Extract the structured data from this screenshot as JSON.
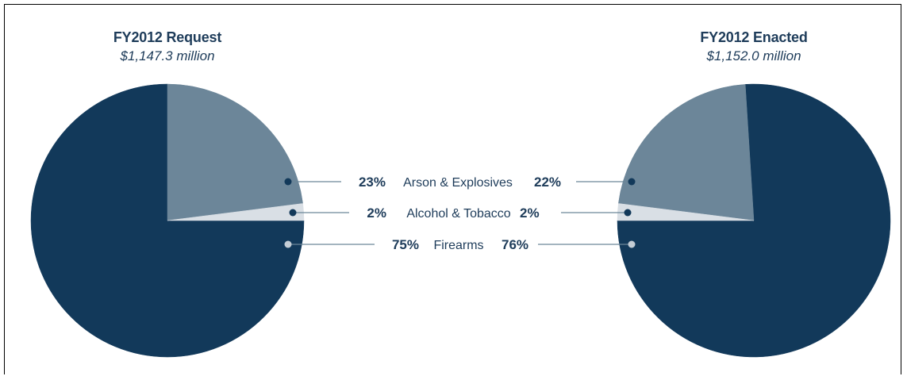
{
  "chart_data": {
    "type": "pie",
    "categories": [
      "Firearms",
      "Arson & Explosives",
      "Alcohol & Tobacco"
    ],
    "colors": {
      "Firearms": "#12395a",
      "Arson & Explosives": "#6c8699",
      "Alcohol & Tobacco": "#d9dfe5",
      "text": "#1e3c5a",
      "leader_line": "#6c8699"
    },
    "pies": [
      {
        "title": "FY2012 Request",
        "subtitle": "$1,147.3 million",
        "values": [
          75,
          23,
          2
        ]
      },
      {
        "title": "FY2012 Enacted",
        "subtitle": "$1,152.0 million",
        "values": [
          76,
          22,
          2
        ]
      }
    ],
    "labels": [
      {
        "category": "Arson & Explosives",
        "left": "23%",
        "right": "22%"
      },
      {
        "category": "Alcohol & Tobacco",
        "left": "2%",
        "right": "2%"
      },
      {
        "category": "Firearms",
        "left": "75%",
        "right": "76%"
      }
    ]
  }
}
